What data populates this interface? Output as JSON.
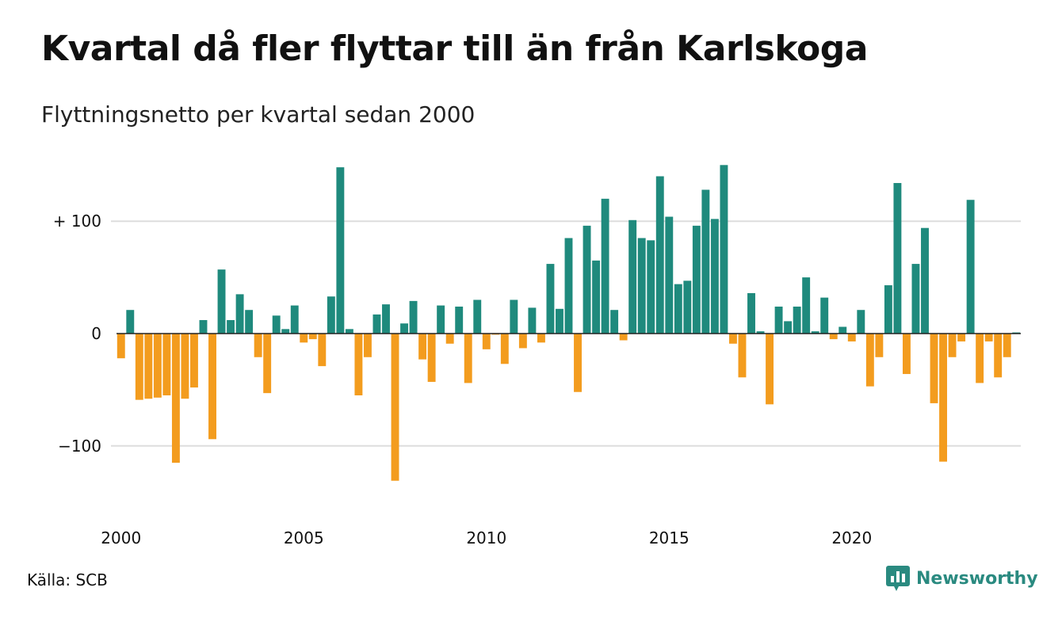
{
  "title": "Kvartal då fler flyttar till än från Karlskoga",
  "subtitle": "Flyttningsnetto per kvartal sedan 2000",
  "source": "Källa: SCB",
  "brand": {
    "name": "Newsworthy",
    "color": "#2a8a80",
    "icon": "newsworthy-logo-icon"
  },
  "colors": {
    "positive": "#1f8a7d",
    "negative": "#f39c1e",
    "grid": "#dddddd",
    "zero": "#222222"
  },
  "chart_data": {
    "type": "bar",
    "title": "Kvartal då fler flyttar till än från Karlskoga",
    "subtitle": "Flyttningsnetto per kvartal sedan 2000",
    "xlabel": "",
    "ylabel": "",
    "ylim": [
      -140,
      150
    ],
    "y_ticks": [
      {
        "value": 100,
        "label": "+ 100"
      },
      {
        "value": 0,
        "label": "0"
      },
      {
        "value": -100,
        "label": "−100"
      }
    ],
    "x_ticks": [
      "2000",
      "2005",
      "2010",
      "2015",
      "2020"
    ],
    "grid": true,
    "start": "2000 Q1",
    "frequency": "quarterly",
    "values": [
      -22,
      21,
      -59,
      -58,
      -57,
      -55,
      -115,
      -58,
      -48,
      12,
      -94,
      57,
      12,
      35,
      21,
      -21,
      -53,
      16,
      4,
      25,
      -8,
      -5,
      -29,
      33,
      148,
      4,
      -55,
      -21,
      17,
      26,
      -131,
      9,
      29,
      -23,
      -43,
      25,
      -9,
      24,
      -44,
      30,
      -14,
      -1,
      -27,
      30,
      -13,
      23,
      -8,
      62,
      22,
      85,
      -52,
      96,
      65,
      120,
      21,
      -6,
      101,
      85,
      83,
      140,
      104,
      44,
      47,
      96,
      128,
      102,
      150,
      -9,
      -39,
      36,
      2,
      -63,
      24,
      11,
      24,
      50,
      2,
      32,
      -5,
      6,
      -7,
      21,
      -47,
      -21,
      43,
      134,
      -36,
      62,
      94,
      -62,
      -114,
      -21,
      -7,
      119,
      -44,
      -7,
      -39,
      -21,
      1
    ]
  }
}
